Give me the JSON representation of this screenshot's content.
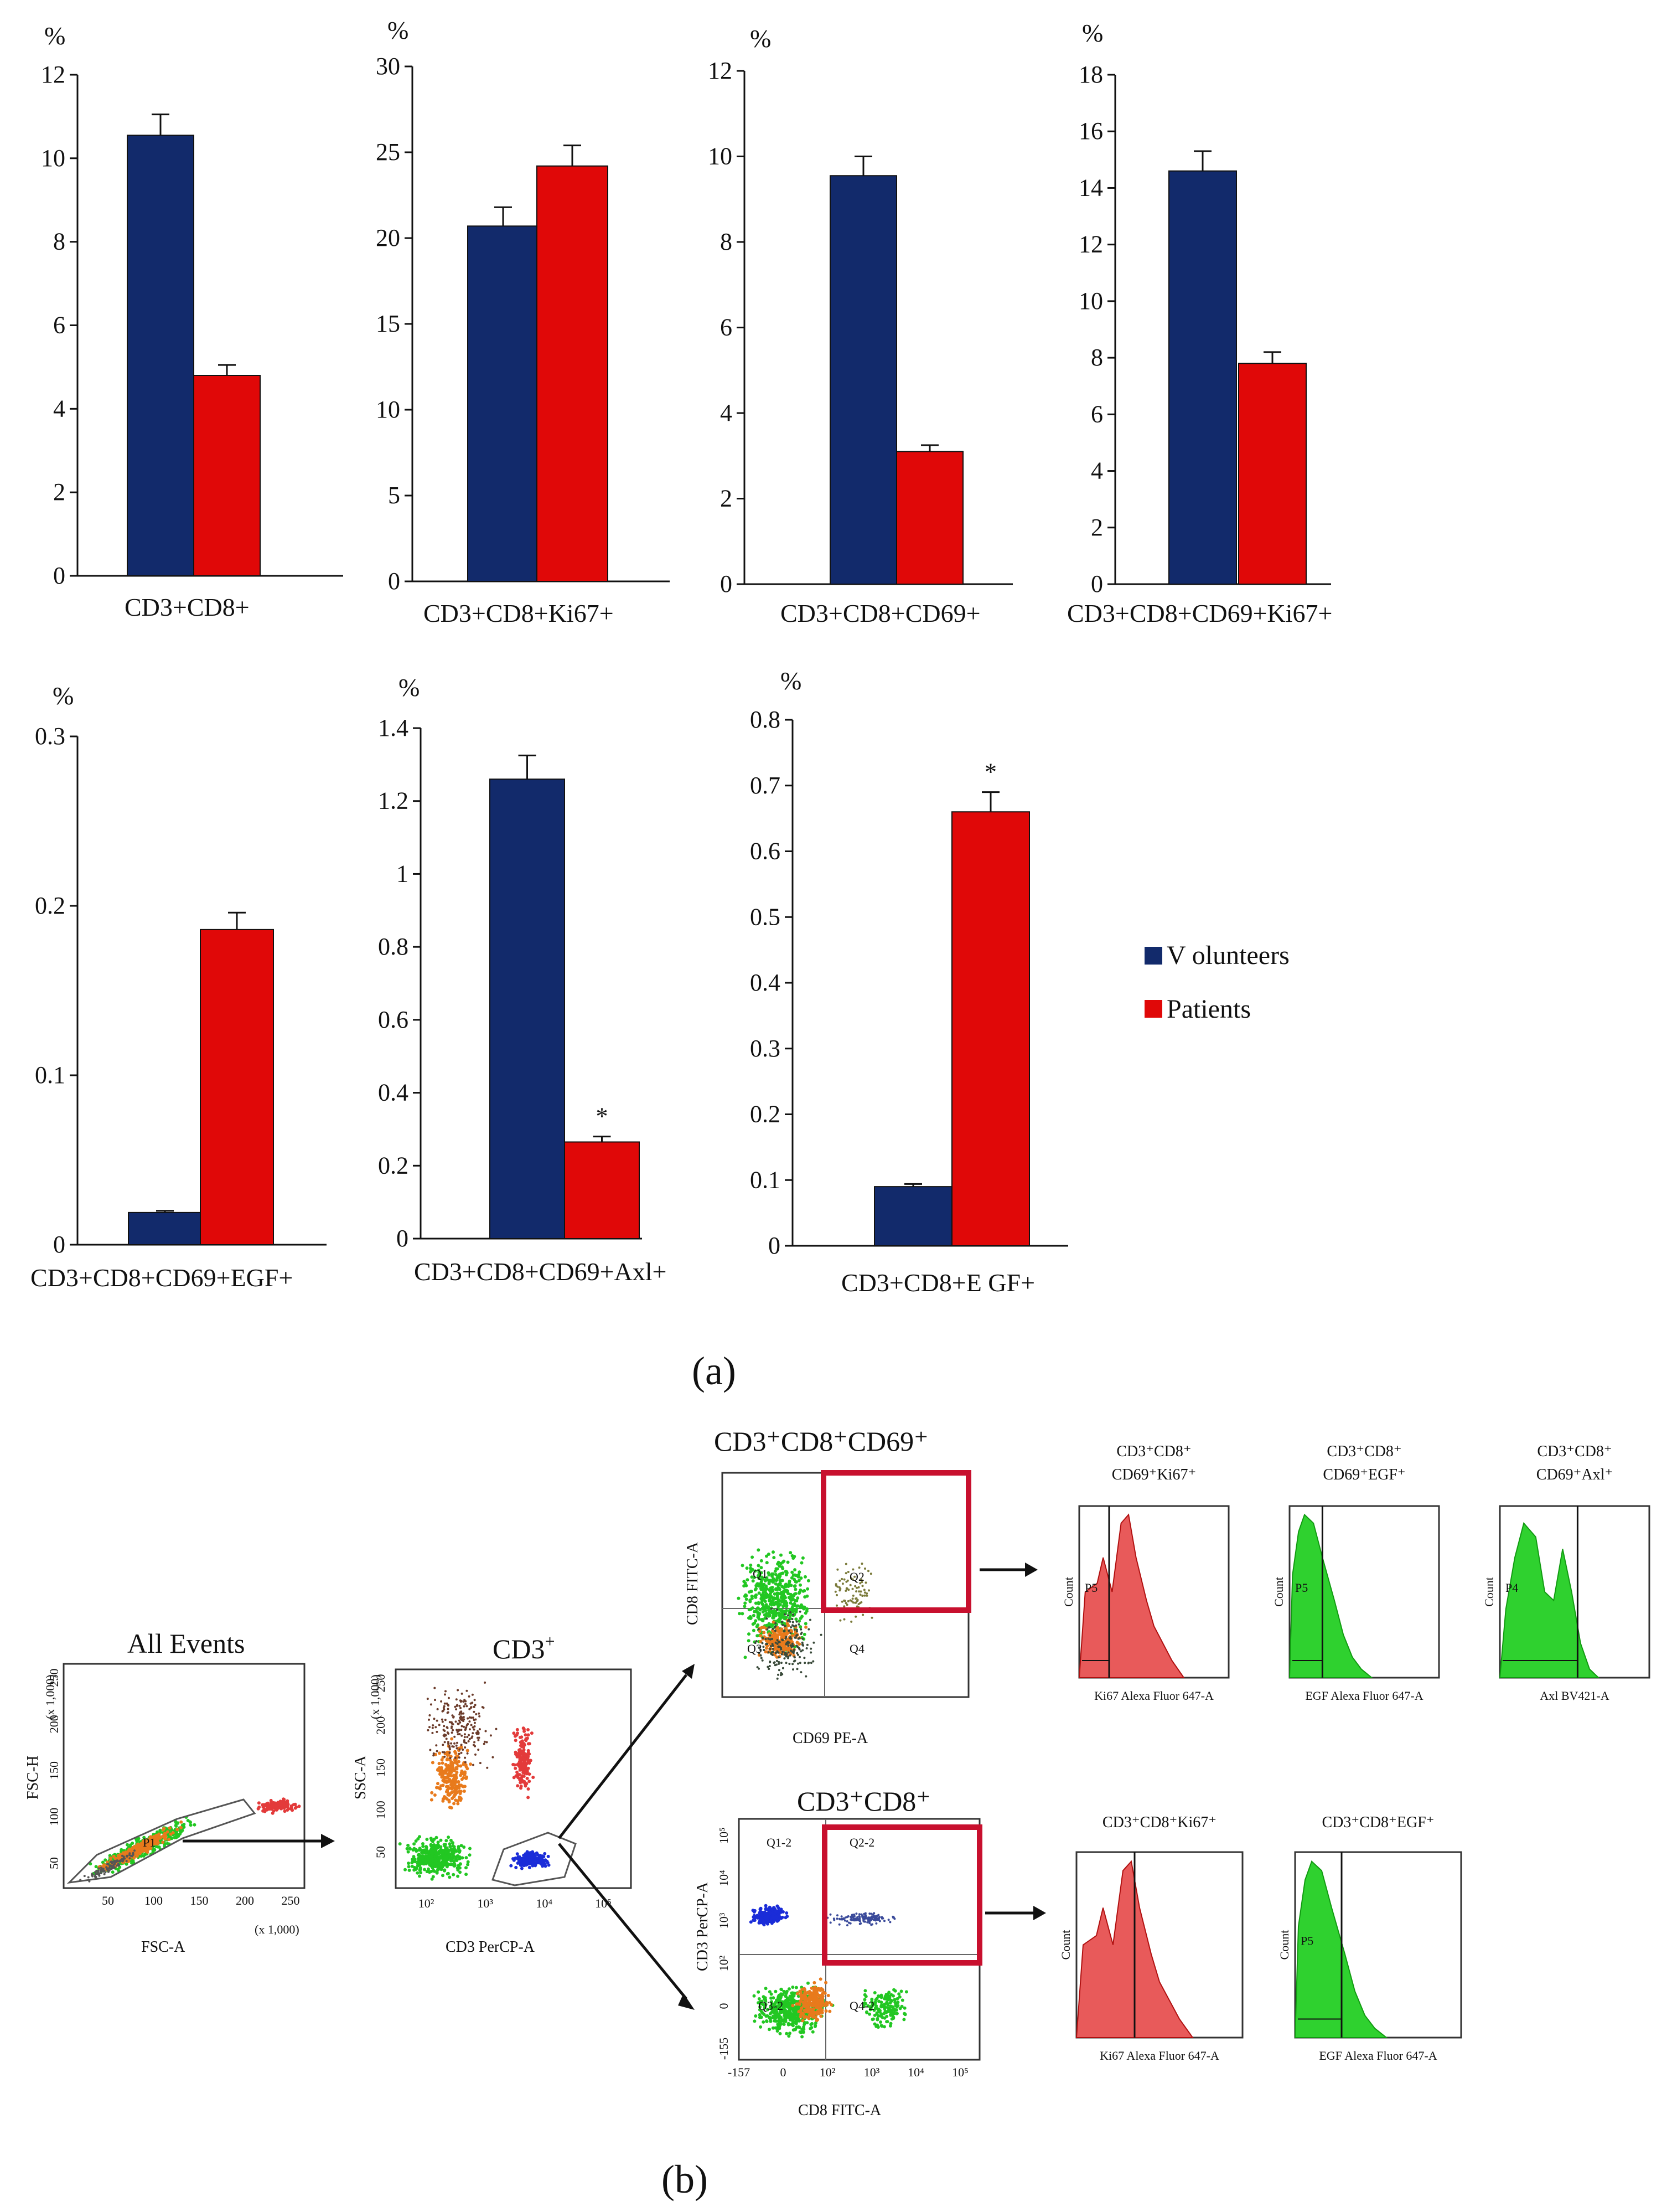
{
  "colors": {
    "volunteers": "#122a6b",
    "patients": "#e00808",
    "gate": "#c8102e",
    "green": "#22c722",
    "orange": "#e87a1c",
    "dotred": "#e33a3a",
    "dotblue": "#1a2cd8"
  },
  "legend": {
    "items": [
      "V olunteers",
      "Patients"
    ]
  },
  "panel_labels": {
    "a": "(a)",
    "b": "(b)"
  },
  "chart_data": [
    {
      "type": "bar",
      "category": "CD3+CD8+",
      "ylabel": "%",
      "ylim": [
        0,
        12
      ],
      "yticks": [
        "0",
        "2",
        "4",
        "6",
        "8",
        "10",
        "12"
      ],
      "series": [
        {
          "name": "Volunteers",
          "values": [
            10.55
          ],
          "err": [
            0.5
          ]
        },
        {
          "name": "Patients",
          "values": [
            4.8
          ],
          "err": [
            0.25
          ]
        }
      ],
      "stars": []
    },
    {
      "type": "bar",
      "category": "CD3+CD8+Ki67+",
      "ylabel": "%",
      "ylim": [
        0,
        30
      ],
      "yticks": [
        "0",
        "5",
        "10",
        "15",
        "20",
        "25",
        "30"
      ],
      "series": [
        {
          "name": "Volunteers",
          "values": [
            20.7
          ],
          "err": [
            1.1
          ]
        },
        {
          "name": "Patients",
          "values": [
            24.2
          ],
          "err": [
            1.2
          ]
        }
      ],
      "stars": []
    },
    {
      "type": "bar",
      "category": "CD3+CD8+CD69+",
      "ylabel": "%",
      "ylim": [
        0,
        12
      ],
      "yticks": [
        "0",
        "2",
        "4",
        "6",
        "8",
        "10",
        "12"
      ],
      "series": [
        {
          "name": "Volunteers",
          "values": [
            9.55
          ],
          "err": [
            0.45
          ]
        },
        {
          "name": "Patients",
          "values": [
            3.1
          ],
          "err": [
            0.15
          ]
        }
      ],
      "stars": []
    },
    {
      "type": "bar",
      "category": "CD3+CD8+CD69+Ki67+",
      "ylabel": "%",
      "ylim": [
        0,
        18
      ],
      "yticks": [
        "0",
        "2",
        "4",
        "6",
        "8",
        "10",
        "12",
        "14",
        "16",
        "18"
      ],
      "series": [
        {
          "name": "Volunteers",
          "values": [
            14.6
          ],
          "err": [
            0.7
          ]
        },
        {
          "name": "Patients",
          "values": [
            7.8
          ],
          "err": [
            0.4
          ]
        }
      ],
      "stars": []
    },
    {
      "type": "bar",
      "category": "CD3+CD8+CD69+EGF+",
      "ylabel": "%",
      "ylim": [
        0,
        0.3
      ],
      "yticks": [
        "0",
        "0.1",
        "0.2",
        "0.3"
      ],
      "series": [
        {
          "name": "Volunteers",
          "values": [
            0.019
          ],
          "err": [
            0.001
          ]
        },
        {
          "name": "Patients",
          "values": [
            0.186
          ],
          "err": [
            0.01
          ]
        }
      ],
      "stars": []
    },
    {
      "type": "bar",
      "category": "CD3+CD8+CD69+Axl+",
      "ylabel": "%",
      "ylim": [
        0,
        1.4
      ],
      "yticks": [
        "0",
        "0.2",
        "0.4",
        "0.6",
        "0.8",
        "1",
        "1.2",
        "1.4"
      ],
      "series": [
        {
          "name": "Volunteers",
          "values": [
            1.26
          ],
          "err": [
            0.065
          ]
        },
        {
          "name": "Patients",
          "values": [
            0.265
          ],
          "err": [
            0.015
          ]
        }
      ],
      "stars": [
        "*"
      ]
    },
    {
      "type": "bar",
      "category": "CD3+CD8+E GF+",
      "ylabel": "%",
      "ylim": [
        0,
        0.8
      ],
      "yticks": [
        "0",
        "0.1",
        "0.2",
        "0.3",
        "0.4",
        "0.5",
        "0.6",
        "0.7",
        "0.8"
      ],
      "series": [
        {
          "name": "Volunteers",
          "values": [
            0.09
          ],
          "err": [
            0.004
          ]
        },
        {
          "name": "Patients",
          "values": [
            0.66
          ],
          "err": [
            0.03
          ]
        }
      ],
      "stars": [
        "*"
      ]
    }
  ],
  "flow": {
    "all_events": {
      "title": "All Events",
      "xlabel": "FSC-A",
      "ylabel": "FSC-H",
      "x_ticks": [
        "50",
        "100",
        "150",
        "200",
        "250"
      ],
      "y_ticks": [
        "50",
        "100",
        "150",
        "200",
        "250"
      ],
      "x_unit": "(x 1,000)",
      "y_unit": "(x 1,000)",
      "gate": "P1"
    },
    "cd3": {
      "title": "CD3",
      "sup": "+",
      "xlabel": "CD3 PerCP-A",
      "ylabel": "SSC-A",
      "x_ticks": [
        "10²",
        "10³",
        "10⁴",
        "10⁵"
      ],
      "y_ticks": [
        "50",
        "100",
        "150",
        "200",
        "250"
      ],
      "y_unit": "(x 1,000)"
    },
    "cd3cd8cd69": {
      "title": "CD3⁺CD8⁺CD69⁺",
      "xlabel": "CD69 PE-A",
      "ylabel": "CD8 FITC-A",
      "q": [
        "Q1",
        "Q2",
        "Q3",
        "Q4"
      ]
    },
    "cd3cd8": {
      "title": "CD3⁺CD8⁺",
      "xlabel": "CD8 FITC-A",
      "ylabel": "CD3 PerCP-A",
      "q": [
        "Q1-2",
        "Q2-2",
        "Q3-2",
        "Q4-2"
      ],
      "x_ticks": [
        "-157",
        "0",
        "10²",
        "10³",
        "10⁴",
        "10⁵"
      ],
      "y_ticks": [
        "10⁵",
        "10⁴",
        "10³",
        "10²",
        "0",
        "-155"
      ]
    },
    "hist_top": [
      {
        "title1": "CD3⁺CD8⁺",
        "title2": "CD69⁺Ki67⁺",
        "xlabel": "Ki67 Alexa Fluor 647-A",
        "gate": "P5",
        "color": "red"
      },
      {
        "title1": "CD3⁺CD8⁺",
        "title2": "CD69⁺EGF⁺",
        "xlabel": "EGF Alexa Fluor 647-A",
        "gate": "P5",
        "color": "green"
      },
      {
        "title1": "CD3⁺CD8⁺",
        "title2": "CD69⁺Axl⁺",
        "xlabel": "Axl BV421-A",
        "gate": "P4",
        "color": "green"
      }
    ],
    "hist_bottom": [
      {
        "title1": "CD3⁺CD8⁺Ki67⁺",
        "xlabel": "Ki67 Alexa Fluor 647-A",
        "gate": "",
        "color": "red"
      },
      {
        "title1": "CD3⁺CD8⁺EGF⁺",
        "xlabel": "EGF Alexa Fluor 647-A",
        "gate": "P5",
        "color": "green"
      }
    ],
    "count_label": "Count"
  }
}
